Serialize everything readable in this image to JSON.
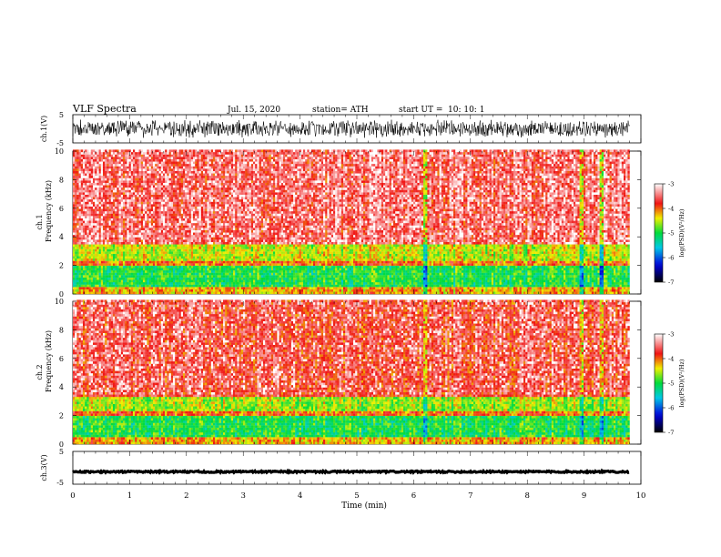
{
  "header": {
    "title": "VLF Spectra",
    "date": "Jul. 15, 2020",
    "station": "station= ATH",
    "start": "start UT =",
    "start_time": "10: 10: 1"
  },
  "chart_data": [
    {
      "type": "line",
      "ylabel": "ch.1(V)",
      "ylim": [
        -5,
        5
      ],
      "yticks": [
        "5",
        "-5"
      ],
      "xlim": [
        0,
        10
      ],
      "amplitude_range": [
        -3.3,
        3.3
      ],
      "color": "#000000"
    },
    {
      "type": "heatmap",
      "ylabel": "ch.1\nFrequency (kHz)",
      "ylabel_lines": [
        "ch.1",
        "Frequency (kHz)"
      ],
      "ylim": [
        0,
        10
      ],
      "yticks": [
        "0",
        "2",
        "4",
        "6",
        "8",
        "10"
      ],
      "xlim": [
        0,
        10
      ],
      "data_end_min": 9.8,
      "colorbar": {
        "label": "log(PSD)(V²/Hz)",
        "range": [
          -7,
          -3
        ],
        "ticks": [
          "-3",
          "-4",
          "-5",
          "-6",
          "-7"
        ]
      },
      "bands": [
        {
          "from_khz": 0.0,
          "to_khz": 0.35,
          "level": -4.2
        },
        {
          "from_khz": 0.35,
          "to_khz": 1.9,
          "level": -5.0
        },
        {
          "from_khz": 1.9,
          "to_khz": 2.2,
          "level": -4.0
        },
        {
          "from_khz": 2.2,
          "to_khz": 3.4,
          "level": -4.5
        },
        {
          "from_khz": 3.4,
          "to_khz": 10.0,
          "level": -3.6
        }
      ],
      "spike_times_min": [
        6.2,
        8.95,
        9.3
      ]
    },
    {
      "type": "heatmap",
      "ylabel": "ch.2\nFrequency (kHz)",
      "ylabel_lines": [
        "ch.2",
        "Frequency (kHz)"
      ],
      "ylim": [
        0,
        10
      ],
      "yticks": [
        "0",
        "2",
        "4",
        "6",
        "8",
        "10"
      ],
      "xlim": [
        0,
        10
      ],
      "data_end_min": 9.8,
      "colorbar": {
        "label": "log(PSD)(V²/Hz)",
        "range": [
          -7,
          -3
        ],
        "ticks": [
          "-3",
          "-4",
          "-5",
          "-6",
          "-7"
        ]
      },
      "bands": [
        {
          "from_khz": 0.0,
          "to_khz": 0.35,
          "level": -4.2
        },
        {
          "from_khz": 0.35,
          "to_khz": 1.9,
          "level": -5.0
        },
        {
          "from_khz": 1.9,
          "to_khz": 2.2,
          "level": -4.0
        },
        {
          "from_khz": 2.2,
          "to_khz": 3.2,
          "level": -4.6
        },
        {
          "from_khz": 3.2,
          "to_khz": 10.0,
          "level": -3.7
        }
      ],
      "spike_times_min": [
        6.2,
        8.95,
        9.3
      ]
    },
    {
      "type": "line",
      "ylabel": "ch.3(V)",
      "ylim": [
        -5,
        5
      ],
      "yticks": [
        "5",
        "-5"
      ],
      "xlim": [
        0,
        10
      ],
      "xlabel": "Time (min)",
      "xticks": [
        "0",
        "1",
        "2",
        "3",
        "4",
        "5",
        "6",
        "7",
        "8",
        "9",
        "10"
      ],
      "level": -1.2,
      "color": "#000000"
    }
  ]
}
